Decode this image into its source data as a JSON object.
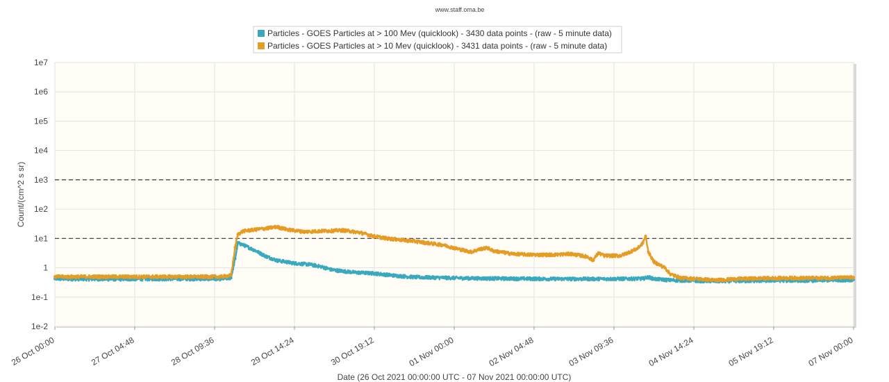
{
  "chart_data": {
    "type": "line",
    "source_label": "www.staff.oma.be",
    "xlabel": "Date (26 Oct 2021 00:00:00 UTC - 07 Nov 2021 00:00:00 UTC)",
    "ylabel": "Count/(cm^2 s sr)",
    "y_scale": "log",
    "ylim": [
      0.01,
      10000000
    ],
    "y_tick_values": [
      0.01,
      0.1,
      1,
      10,
      100,
      1000,
      10000,
      100000,
      1000000,
      10000000
    ],
    "y_tick_labels": [
      "1e-2",
      "1e-1",
      "1",
      "1e1",
      "1e2",
      "1e3",
      "1e4",
      "1e5",
      "1e6",
      "1e7"
    ],
    "xlim_hours": [
      0,
      288
    ],
    "x_tick_hours": [
      0,
      28.8,
      57.6,
      86.4,
      115.2,
      144,
      172.8,
      201.6,
      230.4,
      259.2,
      288
    ],
    "x_tick_labels": [
      "26 Oct 00:00",
      "27 Oct 04:48",
      "28 Oct 09:36",
      "29 Oct 14:24",
      "30 Oct 19:12",
      "01 Nov 00:00",
      "02 Nov 04:48",
      "03 Nov 09:36",
      "04 Nov 14:24",
      "05 Nov 19:12",
      "07 Nov 00:00"
    ],
    "threshold_lines": [
      1000,
      10
    ],
    "grid": true,
    "legend_position": "top-center",
    "plot_background": "#fffdf5",
    "series": [
      {
        "name": "Particles - GOES Particles at > 100 Mev (quicklook) - 3430 data points -  (raw - 5 minute data)",
        "color": "#3aa9bd",
        "points": [
          [
            0,
            0.42
          ],
          [
            20,
            0.41
          ],
          [
            40,
            0.42
          ],
          [
            60,
            0.42
          ],
          [
            63.5,
            0.45
          ],
          [
            65,
            2.0
          ],
          [
            66,
            7.0
          ],
          [
            68,
            6.0
          ],
          [
            72,
            4.0
          ],
          [
            76,
            2.5
          ],
          [
            80,
            1.8
          ],
          [
            86,
            1.45
          ],
          [
            92,
            1.3
          ],
          [
            96,
            1.1
          ],
          [
            100,
            0.85
          ],
          [
            108,
            0.7
          ],
          [
            115,
            0.65
          ],
          [
            122,
            0.55
          ],
          [
            130,
            0.48
          ],
          [
            140,
            0.46
          ],
          [
            150,
            0.44
          ],
          [
            165,
            0.43
          ],
          [
            180,
            0.42
          ],
          [
            200,
            0.42
          ],
          [
            212,
            0.43
          ],
          [
            214,
            0.48
          ],
          [
            216,
            0.42
          ],
          [
            222,
            0.38
          ],
          [
            232,
            0.36
          ],
          [
            240,
            0.35
          ],
          [
            250,
            0.36
          ],
          [
            260,
            0.37
          ],
          [
            270,
            0.37
          ],
          [
            280,
            0.38
          ],
          [
            288,
            0.39
          ]
        ]
      },
      {
        "name": "Particles - GOES Particles at > 10 Mev (quicklook) - 3431 data points -  (raw - 5 minute data)",
        "color": "#e59c25",
        "points": [
          [
            0,
            0.5
          ],
          [
            20,
            0.5
          ],
          [
            40,
            0.5
          ],
          [
            60,
            0.5
          ],
          [
            63.5,
            0.55
          ],
          [
            65,
            5
          ],
          [
            66,
            14
          ],
          [
            68,
            18
          ],
          [
            72,
            20
          ],
          [
            76,
            22
          ],
          [
            80,
            25
          ],
          [
            84,
            20
          ],
          [
            90,
            17
          ],
          [
            96,
            18
          ],
          [
            104,
            19
          ],
          [
            110,
            16
          ],
          [
            115,
            12
          ],
          [
            120,
            10
          ],
          [
            130,
            8
          ],
          [
            140,
            6
          ],
          [
            145,
            4.5
          ],
          [
            150,
            3.5
          ],
          [
            154,
            4.5
          ],
          [
            156,
            4.8
          ],
          [
            158,
            3.8
          ],
          [
            165,
            3
          ],
          [
            172,
            2.8
          ],
          [
            180,
            2.8
          ],
          [
            186,
            3.0
          ],
          [
            192,
            2.4
          ],
          [
            194,
            1.8
          ],
          [
            196,
            3.2
          ],
          [
            198,
            2.6
          ],
          [
            204,
            2.6
          ],
          [
            210,
            4.5
          ],
          [
            212,
            7
          ],
          [
            213,
            12
          ],
          [
            214,
            3.5
          ],
          [
            216,
            1.6
          ],
          [
            220,
            1.0
          ],
          [
            222,
            0.6
          ],
          [
            226,
            0.45
          ],
          [
            232,
            0.42
          ],
          [
            238,
            0.38
          ],
          [
            246,
            0.42
          ],
          [
            255,
            0.44
          ],
          [
            265,
            0.45
          ],
          [
            275,
            0.45
          ],
          [
            288,
            0.47
          ]
        ]
      }
    ]
  }
}
